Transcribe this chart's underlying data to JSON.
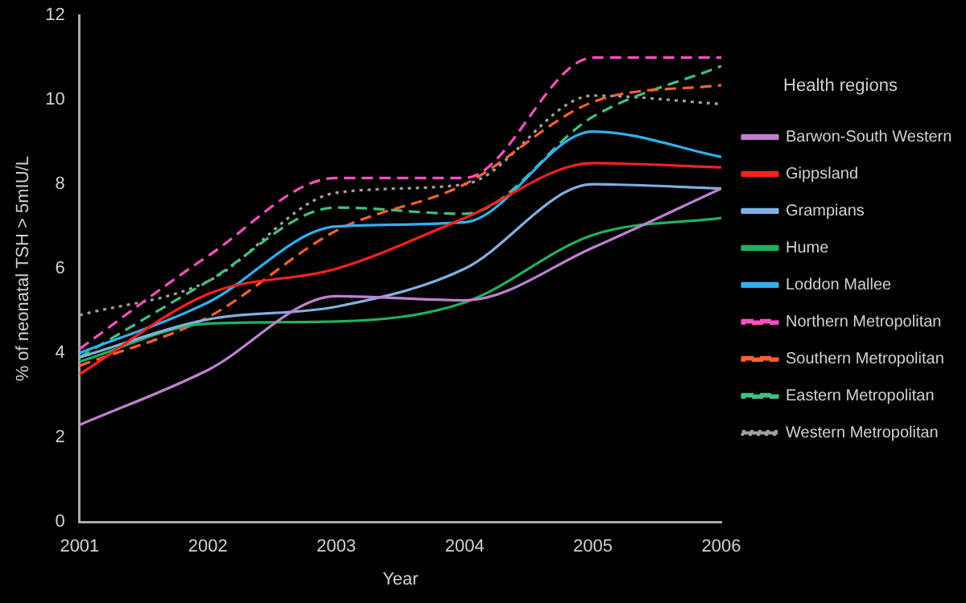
{
  "chart_data": {
    "type": "line",
    "xlabel": "Year",
    "ylabel": "% of neonatal TSH > 5mIU/L",
    "legend_title": "Health regions",
    "legend": "right",
    "grid": false,
    "marker": "none",
    "x": [
      2001,
      2002,
      2003,
      2004,
      2005,
      2006
    ],
    "xlim": [
      2001,
      2006
    ],
    "xticks": [
      2001,
      2002,
      2003,
      2004,
      2005,
      2006
    ],
    "ylim": [
      0,
      12
    ],
    "yticks": [
      0,
      2,
      4,
      6,
      8,
      10,
      12
    ],
    "series": [
      {
        "name": "Barwon-South Western",
        "color": "#c080d0",
        "line_style": "solid",
        "values": [
          2.3,
          3.6,
          5.35,
          5.25,
          6.5,
          7.9
        ]
      },
      {
        "name": "Gippsland",
        "color": "#ff2020",
        "line_style": "solid",
        "values": [
          3.5,
          5.4,
          6.0,
          7.2,
          8.5,
          8.4
        ]
      },
      {
        "name": "Grampians",
        "color": "#80b0e0",
        "line_style": "solid",
        "values": [
          3.9,
          4.8,
          5.1,
          6.0,
          8.0,
          7.9
        ]
      },
      {
        "name": "Hume",
        "color": "#20b060",
        "line_style": "solid",
        "values": [
          3.8,
          4.7,
          4.75,
          5.2,
          6.8,
          7.2
        ]
      },
      {
        "name": "Loddon Mallee",
        "color": "#30b0f0",
        "line_style": "solid",
        "values": [
          4.0,
          5.2,
          7.0,
          7.1,
          9.25,
          8.65
        ]
      },
      {
        "name": "Northern Metropolitan",
        "color": "#ff50c0",
        "line_style": "dashed",
        "values": [
          4.1,
          6.3,
          8.15,
          8.15,
          11.0,
          11.0
        ]
      },
      {
        "name": "Southern Metropolitan",
        "color": "#ff6030",
        "line_style": "dashed",
        "values": [
          3.7,
          4.85,
          6.9,
          8.0,
          9.95,
          10.35
        ]
      },
      {
        "name": "Eastern Metropolitan",
        "color": "#40c080",
        "line_style": "dashed",
        "values": [
          3.9,
          5.7,
          7.45,
          7.3,
          9.6,
          10.8
        ]
      },
      {
        "name": "Western Metropolitan",
        "color": "#a0a0a0",
        "line_style": "dotted",
        "values": [
          4.9,
          5.7,
          7.8,
          8.0,
          10.1,
          9.9
        ]
      }
    ]
  }
}
